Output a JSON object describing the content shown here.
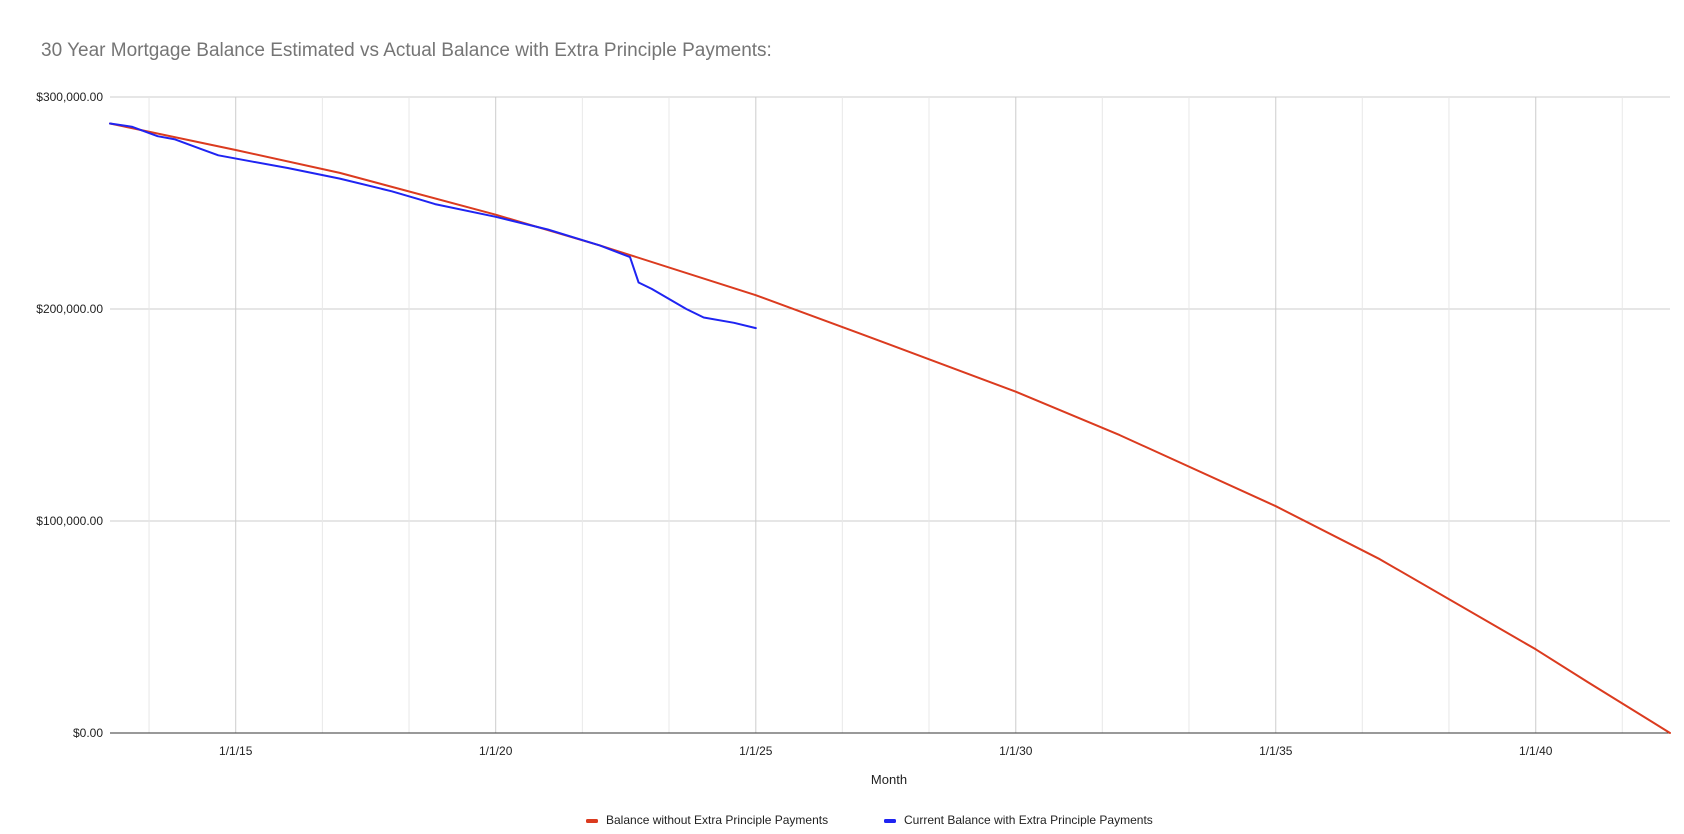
{
  "chart_data": {
    "type": "line",
    "title": "30 Year Mortgage Balance Estimated vs Actual Balance with Extra Principle Payments:",
    "xlabel": "Month",
    "ylabel": "",
    "x_range": [
      "2012-08-01",
      "2042-08-01"
    ],
    "ylim": [
      0,
      300000
    ],
    "y_ticks": [
      {
        "value": 0,
        "label": "$0.00"
      },
      {
        "value": 100000,
        "label": "$100,000.00"
      },
      {
        "value": 200000,
        "label": "$200,000.00"
      },
      {
        "value": 300000,
        "label": "$300,000.00"
      }
    ],
    "x_ticks": [
      {
        "date": "2015-01-01",
        "label": "1/1/15"
      },
      {
        "date": "2020-01-01",
        "label": "1/1/20"
      },
      {
        "date": "2025-01-01",
        "label": "1/1/25"
      },
      {
        "date": "2030-01-01",
        "label": "1/1/30"
      },
      {
        "date": "2035-01-01",
        "label": "1/1/35"
      },
      {
        "date": "2040-01-01",
        "label": "1/1/40"
      }
    ],
    "grid": true,
    "legend_position": "bottom",
    "series": [
      {
        "name": "Balance without Extra Principle Payments",
        "color": "#db3b1f",
        "points": [
          {
            "x": "2012-08-01",
            "y": 287500
          },
          {
            "x": "2015-01-01",
            "y": 275000
          },
          {
            "x": "2017-01-01",
            "y": 264200
          },
          {
            "x": "2020-01-01",
            "y": 244500
          },
          {
            "x": "2022-01-01",
            "y": 230000
          },
          {
            "x": "2025-01-01",
            "y": 206500
          },
          {
            "x": "2027-01-01",
            "y": 188500
          },
          {
            "x": "2030-01-01",
            "y": 161000
          },
          {
            "x": "2032-01-01",
            "y": 140500
          },
          {
            "x": "2035-01-01",
            "y": 107000
          },
          {
            "x": "2037-01-01",
            "y": 82000
          },
          {
            "x": "2040-01-01",
            "y": 39500
          },
          {
            "x": "2041-01-01",
            "y": 24000
          },
          {
            "x": "2042-08-01",
            "y": 0
          }
        ]
      },
      {
        "name": "Current Balance with Extra Principle Payments",
        "color": "#1f24f2",
        "points": [
          {
            "x": "2012-08-01",
            "y": 287500
          },
          {
            "x": "2013-01-01",
            "y": 286000
          },
          {
            "x": "2013-07-01",
            "y": 281500
          },
          {
            "x": "2013-11-01",
            "y": 280000
          },
          {
            "x": "2014-05-01",
            "y": 275500
          },
          {
            "x": "2014-09-01",
            "y": 272500
          },
          {
            "x": "2015-05-01",
            "y": 269500
          },
          {
            "x": "2016-01-01",
            "y": 266500
          },
          {
            "x": "2017-01-01",
            "y": 261500
          },
          {
            "x": "2018-01-01",
            "y": 255500
          },
          {
            "x": "2018-07-01",
            "y": 252000
          },
          {
            "x": "2018-11-01",
            "y": 249500
          },
          {
            "x": "2020-01-01",
            "y": 243500
          },
          {
            "x": "2021-01-01",
            "y": 237500
          },
          {
            "x": "2022-01-01",
            "y": 230000
          },
          {
            "x": "2022-08-01",
            "y": 224500
          },
          {
            "x": "2022-10-01",
            "y": 212500
          },
          {
            "x": "2023-01-01",
            "y": 209500
          },
          {
            "x": "2023-09-01",
            "y": 200000
          },
          {
            "x": "2024-01-01",
            "y": 196000
          },
          {
            "x": "2024-08-01",
            "y": 193500
          },
          {
            "x": "2025-01-01",
            "y": 191000
          }
        ]
      }
    ]
  }
}
